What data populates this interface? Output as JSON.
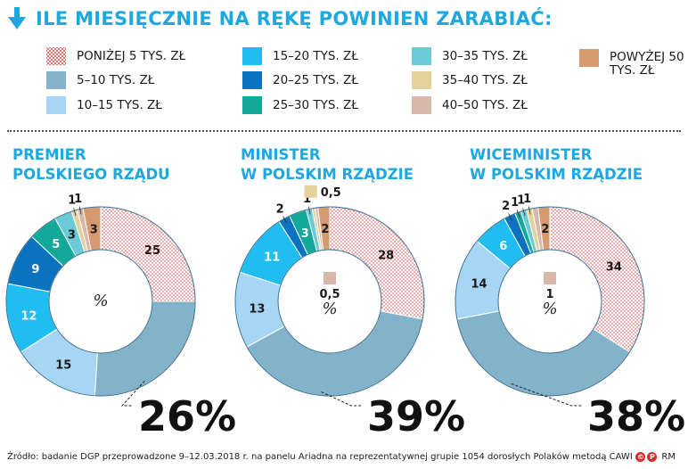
{
  "header": {
    "title": "ILE MIESIĘCZNIE NA RĘKĘ POWINIEN ZARABIAĆ:"
  },
  "legend": [
    {
      "label": "PONIŻEJ 5 TYS. ZŁ",
      "color": "#ffffff",
      "pattern": "dots"
    },
    {
      "label": "5–10 TYS. ZŁ",
      "color": "#82b3cb"
    },
    {
      "label": "10–15 TYS. ZŁ",
      "color": "#a6d6f3"
    },
    {
      "label": "15–20 TYS. ZŁ",
      "color": "#20bdf0"
    },
    {
      "label": "20–25 TYS. ZŁ",
      "color": "#0a72bf"
    },
    {
      "label": "25–30 TYS. ZŁ",
      "color": "#12a99a"
    },
    {
      "label": "30–35 TYS. ZŁ",
      "color": "#6ccad7"
    },
    {
      "label": "35–40 TYS. ZŁ",
      "color": "#e4d29a"
    },
    {
      "label": "40–50 TYS. ZŁ",
      "color": "#d9b8ac"
    },
    {
      "label": "POWYŻEJ 50 TYS. ZŁ",
      "color": "#d79a6e"
    }
  ],
  "center_label": "%",
  "chart_data": [
    {
      "type": "pie",
      "title": "PREMIER\nPOLSKIEGO RZĄDU",
      "categories": [
        "PONIŻEJ 5 TYS. ZŁ",
        "5–10 TYS. ZŁ",
        "10–15 TYS. ZŁ",
        "15–20 TYS. ZŁ",
        "20–25 TYS. ZŁ",
        "25–30 TYS. ZŁ",
        "30–35 TYS. ZŁ",
        "35–40 TYS. ZŁ",
        "40–50 TYS. ZŁ",
        "POWYŻEJ 50 TYS. ZŁ"
      ],
      "values": [
        25,
        26,
        15,
        12,
        9,
        5,
        3,
        1,
        1,
        3
      ],
      "highlight": "26%"
    },
    {
      "type": "pie",
      "title": "MINISTER\nW POLSKIM RZĄDZIE",
      "categories": [
        "PONIŻEJ 5 TYS. ZŁ",
        "5–10 TYS. ZŁ",
        "10–15 TYS. ZŁ",
        "15–20 TYS. ZŁ",
        "20–25 TYS. ZŁ",
        "25–30 TYS. ZŁ",
        "30–35 TYS. ZŁ",
        "35–40 TYS. ZŁ",
        "40–50 TYS. ZŁ",
        "POWYŻEJ 50 TYS. ZŁ"
      ],
      "values": [
        28,
        39,
        13,
        11,
        2,
        3,
        1,
        0.5,
        0.5,
        2
      ],
      "highlight": "39%"
    },
    {
      "type": "pie",
      "title": "WICEMINISTER\nW POLSKIM RZĄDZIE",
      "categories": [
        "PONIŻEJ 5 TYS. ZŁ",
        "5–10 TYS. ZŁ",
        "10–15 TYS. ZŁ",
        "15–20 TYS. ZŁ",
        "20–25 TYS. ZŁ",
        "25–30 TYS. ZŁ",
        "30–35 TYS. ZŁ",
        "35–40 TYS. ZŁ",
        "40–50 TYS. ZŁ",
        "POWYŻEJ 50 TYS. ZŁ"
      ],
      "values": [
        34,
        38,
        14,
        6,
        2,
        1,
        1,
        1,
        1,
        2
      ],
      "highlight": "38%"
    }
  ],
  "source": "Źródło: badanie DGP przeprowadzone 9–12.03.2018 r. na panelu Ariadna na reprezentatywnej grupie 1054 dorosłych Polaków metodą CAWI",
  "copyright": "RM"
}
